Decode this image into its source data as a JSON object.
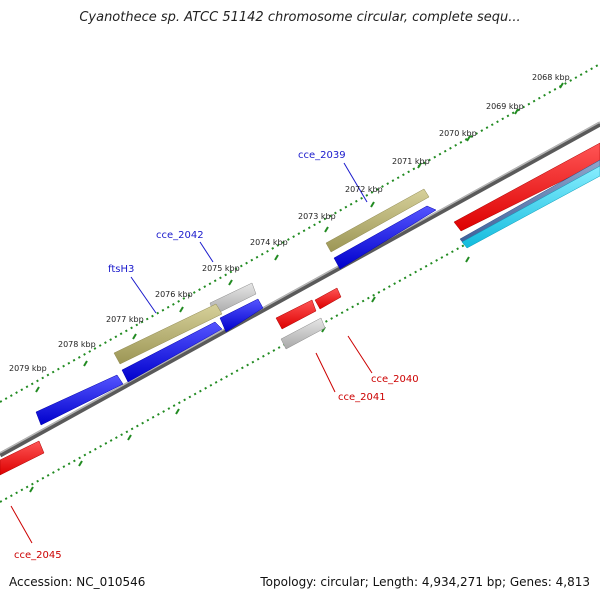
{
  "title": "Cyanothece sp. ATCC 51142 chromosome circular, complete sequ...",
  "footer": {
    "accession": "Accession: NC_010546",
    "topology": "Topology: circular; Length: 4,934,271 bp; Genes: 4,813"
  },
  "scale_labels": [
    "2068 kbp",
    "2069 kbp",
    "2070 kbp",
    "2071 kbp",
    "2072 kbp",
    "2073 kbp",
    "2074 kbp",
    "2075 kbp",
    "2076 kbp",
    "2077 kbp",
    "2078 kbp",
    "2079 kbp"
  ],
  "gene_labels": {
    "cce_2039": "cce_2039",
    "cce_2042": "cce_2042",
    "ftsH3": "ftsH3",
    "cce_2040": "cce_2040",
    "cce_2041": "cce_2041",
    "cce_2045": "cce_2045"
  },
  "colors": {
    "label_forward": "#1a1acc",
    "label_reverse": "#cc0000",
    "gene_blue": "#1010dd",
    "gene_red": "#ee0000",
    "gene_olive": "#b3ad6a",
    "gene_grey": "#bdbdbd",
    "gene_cyan": "#22ccee",
    "gene_steel": "#5577aa",
    "tick_green": "#228b22",
    "backbone": "#8c8c8c"
  }
}
